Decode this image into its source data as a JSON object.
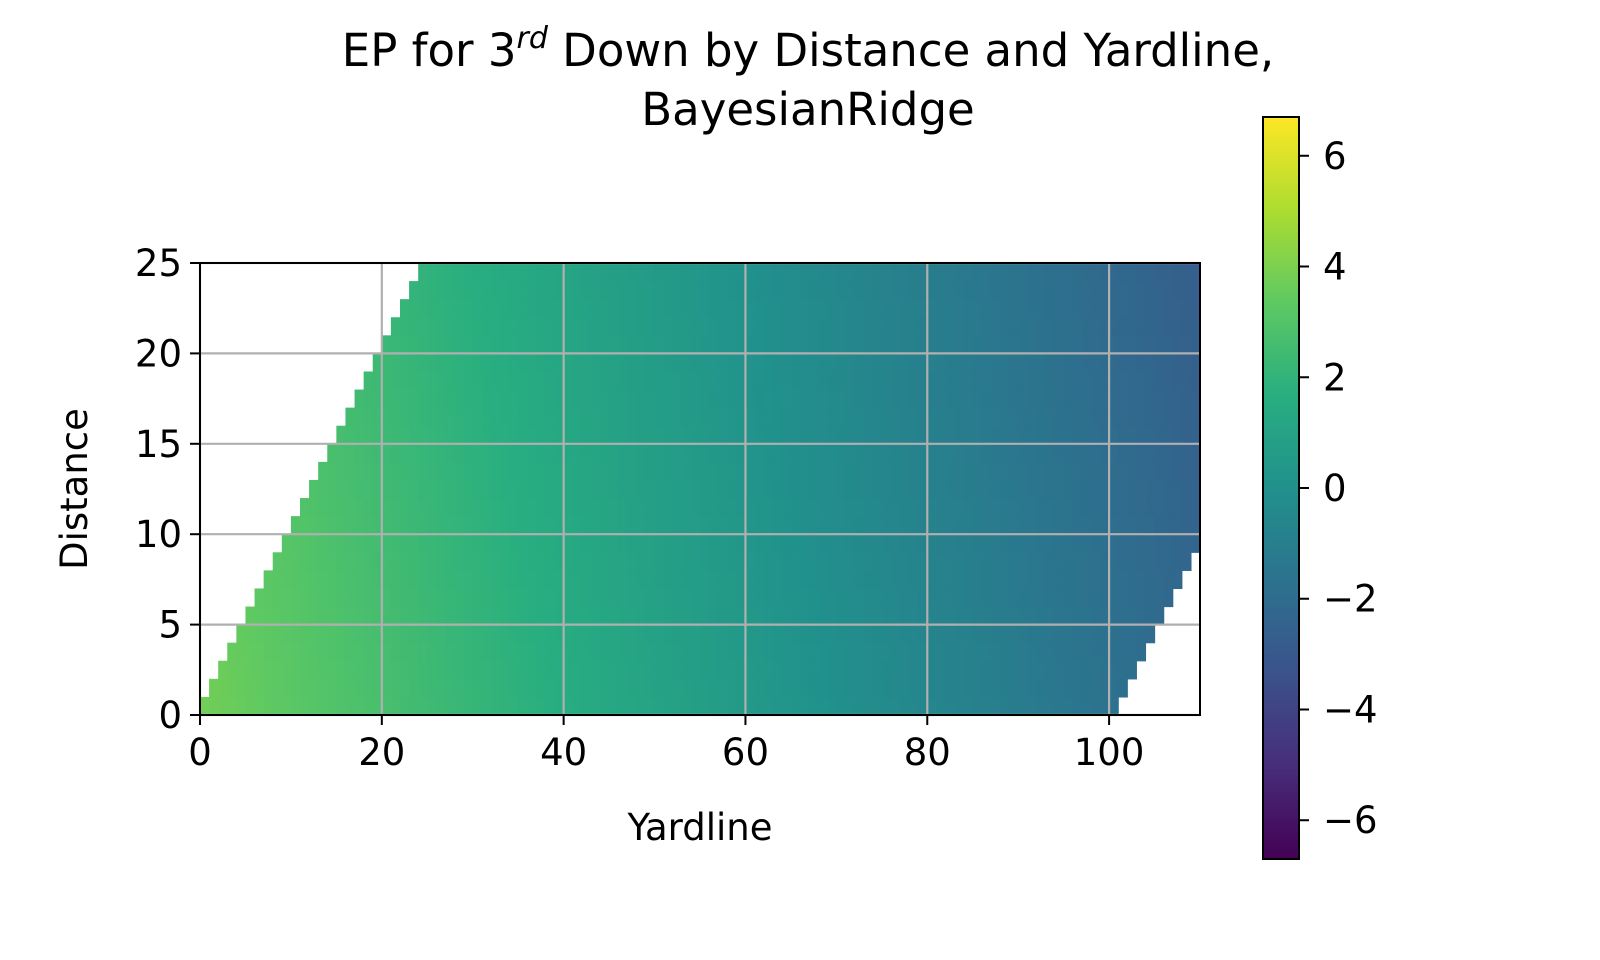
{
  "chart_data": {
    "type": "heatmap",
    "title_line1_main": "EP for 3",
    "title_line1_sup": "rd",
    "title_line1_rest": " Down by Distance and Yardline,",
    "title_line2": "BayesianRidge",
    "xlabel": "Yardline",
    "ylabel": "Distance",
    "xlim": [
      0,
      110
    ],
    "ylim": [
      0,
      25
    ],
    "xticks": [
      0,
      20,
      40,
      60,
      80,
      100
    ],
    "yticks": [
      0,
      5,
      10,
      15,
      20,
      25
    ],
    "grid": true,
    "colormap": "viridis",
    "colorbar": {
      "range": [
        -6.7,
        6.7
      ],
      "ticks": [
        6,
        4,
        2,
        0,
        -2,
        -4,
        -6
      ],
      "tick_labels": [
        "6",
        "4",
        "2",
        "0",
        "−2",
        "−4",
        "−6"
      ]
    },
    "cell_size": {
      "yardline": 1,
      "distance": 1
    },
    "valid_region": {
      "rule": "a cell is drawn only when distance <= yardline and yardline <= 100 + distance",
      "yardline_range": [
        0,
        110
      ],
      "distance_range": [
        0,
        25
      ]
    },
    "ep_model": {
      "form": "EP = intercept + slope_yardline * yardline + slope_distance * distance",
      "intercept": 3.75,
      "slope_yardline": -0.0545,
      "slope_distance": -0.02
    }
  }
}
